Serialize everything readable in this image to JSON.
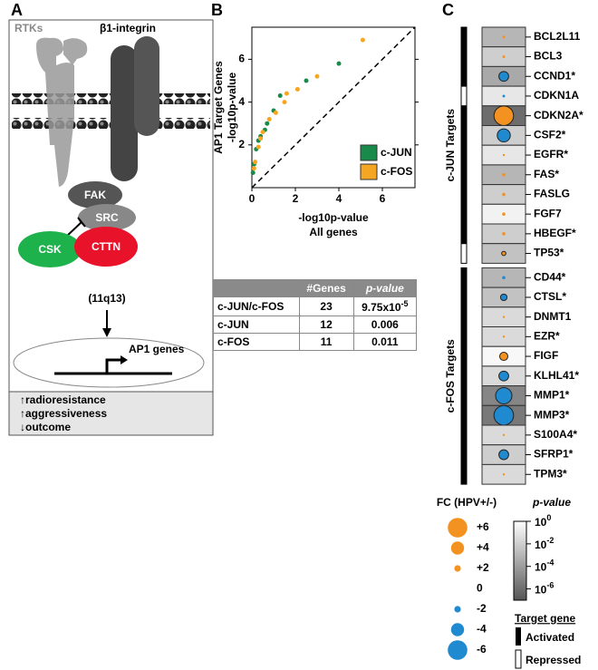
{
  "panel_labels": [
    "A",
    "B",
    "C"
  ],
  "diagram": {
    "rtks": "RTKs",
    "integrin": "β1-integrin",
    "fak": "FAK",
    "src": "SRC",
    "csk": "CSK",
    "cttn": "CTTN",
    "locus": "(11q13)",
    "genes": "AP1 genes",
    "outcomes": [
      "↑radioresistance",
      "↑aggressiveness",
      "↓outcome"
    ]
  },
  "chart_data": {
    "type": "scatter",
    "ylabel": [
      "AP1 Target Genes",
      "-log10p-value"
    ],
    "xlabel": [
      "-log10p-value",
      "All genes"
    ],
    "xlim": [
      0,
      7.5
    ],
    "ylim": [
      0,
      7.5
    ],
    "xticks": [
      0,
      2,
      4,
      6
    ],
    "yticks": [
      2,
      4,
      6
    ],
    "legend": "lower right",
    "series": [
      {
        "name": "c-JUN",
        "color": "#1a8a4a",
        "x": [
          4.0,
          2.5,
          1.3,
          1.0,
          0.6,
          0.4,
          0.2,
          0.1,
          0.05,
          0.3,
          0.7
        ],
        "values": [
          5.8,
          5.0,
          4.3,
          3.6,
          2.7,
          2.4,
          1.8,
          1.1,
          0.7,
          2.2,
          3.0
        ]
      },
      {
        "name": "c-FOS",
        "color": "#f5a623",
        "x": [
          5.1,
          3.0,
          2.1,
          1.6,
          1.5,
          1.1,
          0.8,
          0.5,
          0.4,
          0.3,
          0.15,
          0.1
        ],
        "values": [
          6.9,
          5.2,
          4.6,
          4.4,
          4.0,
          3.5,
          3.2,
          2.6,
          2.3,
          1.9,
          1.2,
          0.9
        ]
      }
    ]
  },
  "table": {
    "header": [
      "#Genes",
      "p-value"
    ],
    "rows": [
      {
        "name": "c-JUN/c-FOS",
        "genes": 23,
        "p_value": "9.75x10",
        "p_exponent": "-5"
      },
      {
        "name": "c-JUN",
        "genes": 12,
        "p_value": 0.006
      },
      {
        "name": "c-FOS",
        "genes": 11,
        "p_value": 0.011
      }
    ]
  },
  "targets": {
    "groups": [
      {
        "name": "c-JUN Targets",
        "genes": [
          {
            "gene": "BCL2L11",
            "fc": 0.8,
            "p_value": 0.001,
            "activated": true
          },
          {
            "gene": "BCL3",
            "fc": 0.8,
            "p_value": 0.01,
            "activated": true
          },
          {
            "gene": "CCND1*",
            "fc": -3,
            "p_value": 0.0003,
            "activated": true
          },
          {
            "gene": "CDKN1A",
            "fc": -0.8,
            "p_value": 0.1,
            "activated": false
          },
          {
            "gene": "CDKN2A*",
            "fc": 6,
            "p_value": 1e-06,
            "activated": true
          },
          {
            "gene": "CSF2*",
            "fc": -4,
            "p_value": 0.01,
            "activated": true
          },
          {
            "gene": "EGFR*",
            "fc": 0.3,
            "p_value": 0.1,
            "activated": true
          },
          {
            "gene": "FAS*",
            "fc": 1,
            "p_value": 0.001,
            "activated": true
          },
          {
            "gene": "FASLG",
            "fc": 1,
            "p_value": 0.01,
            "activated": true
          },
          {
            "gene": "FGF7",
            "fc": 1,
            "p_value": 0.3,
            "activated": true
          },
          {
            "gene": "HBEGF*",
            "fc": 1,
            "p_value": 0.01,
            "activated": true
          },
          {
            "gene": "TP53*",
            "fc": 1.3,
            "p_value": 0.003,
            "activated": false
          }
        ]
      },
      {
        "name": "c-FOS Targets",
        "genes": [
          {
            "gene": "CD44*",
            "fc": -1,
            "p_value": 0.001,
            "activated": true
          },
          {
            "gene": "CTSL*",
            "fc": -2,
            "p_value": 0.003,
            "activated": true
          },
          {
            "gene": "DNMT1",
            "fc": 0.6,
            "p_value": 0.03,
            "activated": true
          },
          {
            "gene": "EZR*",
            "fc": 0.3,
            "p_value": 0.03,
            "activated": true
          },
          {
            "gene": "FIGF",
            "fc": 2.5,
            "p_value": 0.5,
            "activated": true
          },
          {
            "gene": "KLHL41*",
            "fc": -3,
            "p_value": 0.03,
            "activated": true
          },
          {
            "gene": "MMP1*",
            "fc": -5,
            "p_value": 1e-05,
            "activated": true
          },
          {
            "gene": "MMP3*",
            "fc": -6,
            "p_value": 3e-06,
            "activated": true
          },
          {
            "gene": "S100A4*",
            "fc": 0.3,
            "p_value": 0.03,
            "activated": true
          },
          {
            "gene": "SFRP1*",
            "fc": -3,
            "p_value": 0.01,
            "activated": true
          },
          {
            "gene": "TPM3*",
            "fc": 0.3,
            "p_value": 0.03,
            "activated": true
          }
        ]
      }
    ],
    "up_color": "#f39221",
    "down_color": "#1f8ad0",
    "fc_legend": {
      "title": "FC (HPV+/-)",
      "values": [
        {
          "value": 6,
          "label": "+6"
        },
        {
          "value": 4,
          "label": "+4"
        },
        {
          "value": 2,
          "label": "+2"
        },
        0,
        -2,
        -4,
        -6
      ]
    },
    "p_legend": {
      "title": "p-value",
      "plim": [
        1e-07,
        1
      ],
      "ticks": [
        {
          "value": 1,
          "base": "10",
          "exp": "0"
        },
        {
          "value": 0.01,
          "base": "10",
          "exp": "-2"
        },
        {
          "value": 0.0001,
          "base": "10",
          "exp": "-4"
        },
        {
          "value": 1e-06,
          "base": "10",
          "exp": "-6"
        }
      ]
    },
    "target_legend": {
      "title": "Target gene",
      "activated": "Activated",
      "repressed": "Repressed"
    }
  }
}
